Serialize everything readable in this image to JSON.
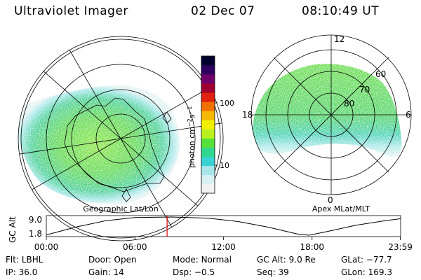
{
  "header": {
    "title": "Ultraviolet Imager",
    "date": "02 Dec 07",
    "time": "08:10:49 UT"
  },
  "colorbar": {
    "label_main": "photon cm",
    "label_sup1": "−2",
    "label_mid": "s",
    "label_sup2": "−1",
    "ticks": [
      {
        "label": "100",
        "value": 100
      },
      {
        "label": "10",
        "value": 10
      }
    ],
    "colors": [
      "#f2f2f2",
      "#d8f0f0",
      "#a8e6ea",
      "#39d3d3",
      "#2fd88c",
      "#56e03a",
      "#b8f020",
      "#f0f000",
      "#f5b800",
      "#f07000",
      "#e02010",
      "#a00030",
      "#70006a",
      "#300060",
      "#000030"
    ]
  },
  "geo_map": {
    "caption": "Geographic Lat/Lon"
  },
  "apex_map": {
    "caption": "Apex MLat/MLT",
    "mlt_labels": {
      "top": "12",
      "left": "18",
      "right": "6",
      "bottom": "0"
    },
    "lat_labels": [
      "60",
      "70",
      "80"
    ]
  },
  "timeline": {
    "ylabel": "GC Alt",
    "y_ticks": [
      "9.0",
      "1.8"
    ],
    "x_ticks": [
      "00:00",
      "06:00",
      "12:00",
      "18:00",
      "23:59"
    ],
    "marker_time_hours": 8.18,
    "marker_color": "#e00000",
    "altitude_curve": [
      {
        "t": 0,
        "alt": 1.9
      },
      {
        "t": 2,
        "alt": 5.0
      },
      {
        "t": 4,
        "alt": 7.5
      },
      {
        "t": 6,
        "alt": 8.8
      },
      {
        "t": 8.5,
        "alt": 9.0
      },
      {
        "t": 11,
        "alt": 8.5
      },
      {
        "t": 13,
        "alt": 7.2
      },
      {
        "t": 15,
        "alt": 5.0
      },
      {
        "t": 17,
        "alt": 2.3
      },
      {
        "t": 17.8,
        "alt": 1.8
      },
      {
        "t": 19,
        "alt": 3.2
      },
      {
        "t": 21,
        "alt": 5.8
      },
      {
        "t": 23,
        "alt": 7.6
      },
      {
        "t": 23.98,
        "alt": 8.3
      }
    ]
  },
  "info": {
    "row1": [
      {
        "key": "Flt:",
        "value": "LBHL"
      },
      {
        "key": "Door:",
        "value": "Open"
      },
      {
        "key": "Mode:",
        "value": "Normal"
      },
      {
        "key": "GC Alt:",
        "value": "9.0 Re"
      },
      {
        "key": "GLat:",
        "value": "−77.7"
      }
    ],
    "row2": [
      {
        "key": "IP:",
        "value": "36.0"
      },
      {
        "key": "Gain:",
        "value": "14"
      },
      {
        "key": "Dsp:",
        "value": "−0.5"
      },
      {
        "key": "Seq:",
        "value": "39"
      },
      {
        "key": "GLon:",
        "value": "169.3"
      }
    ]
  }
}
